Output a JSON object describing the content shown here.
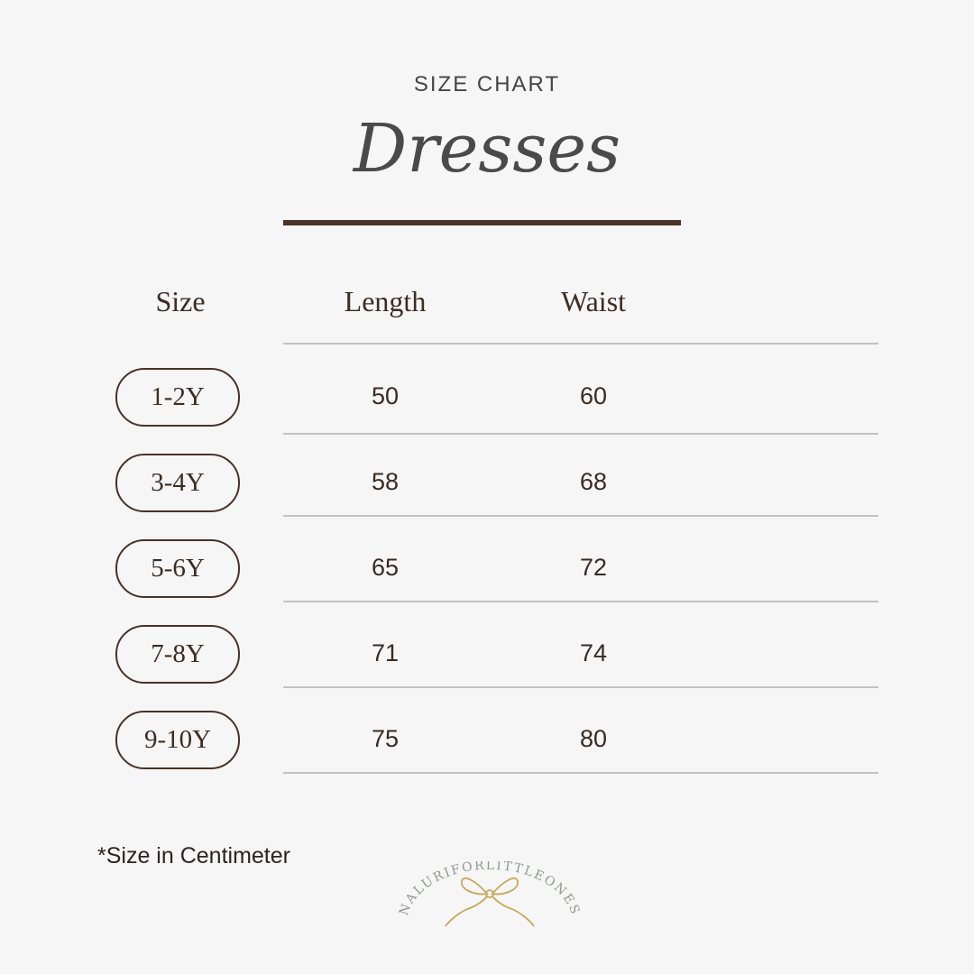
{
  "header": {
    "eyebrow": "SIZE CHART",
    "title": "Dresses"
  },
  "table": {
    "columns": [
      "Size",
      "Length",
      "Waist"
    ],
    "rows": [
      {
        "size": "1-2Y",
        "length": "50",
        "waist": "60"
      },
      {
        "size": "3-4Y",
        "length": "58",
        "waist": "68"
      },
      {
        "size": "5-6Y",
        "length": "65",
        "waist": "72"
      },
      {
        "size": "7-8Y",
        "length": "71",
        "waist": "74"
      },
      {
        "size": "9-10Y",
        "length": "75",
        "waist": "80"
      }
    ]
  },
  "footnote": "*Size in Centimeter",
  "logo": {
    "text": "NALURIFORLITTLEONES",
    "icon": "bow-icon"
  },
  "colors": {
    "accent": "#4a3226",
    "background": "#f6f6f6",
    "rule": "#c2c2c2",
    "logo_text": "#8f9a8f",
    "bow": "#c9a75a"
  }
}
